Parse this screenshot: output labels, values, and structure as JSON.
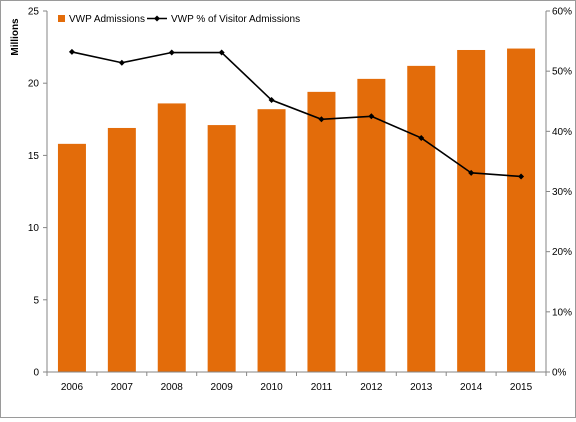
{
  "chart_data": {
    "type": "bar",
    "categories": [
      "2006",
      "2007",
      "2008",
      "2009",
      "2010",
      "2011",
      "2012",
      "2013",
      "2014",
      "2015"
    ],
    "series": [
      {
        "name": "VWP Admissions",
        "type": "bar",
        "axis": "left",
        "color": "#e36c0a",
        "values": [
          15.8,
          16.9,
          18.6,
          17.1,
          18.2,
          19.4,
          20.3,
          21.2,
          22.3,
          22.4
        ]
      },
      {
        "name": "VWP % of Visitor Admissions",
        "type": "line",
        "axis": "right",
        "color": "#000000",
        "values": [
          53.2,
          51.4,
          53.1,
          53.1,
          45.2,
          42.0,
          42.5,
          38.9,
          33.1,
          32.5
        ]
      }
    ],
    "ylabel": "Millions",
    "ylim": [
      0,
      25
    ],
    "yticks": [
      "0",
      "5",
      "10",
      "15",
      "20",
      "25"
    ],
    "y2lim": [
      0,
      60
    ],
    "y2ticks": [
      "0%",
      "10%",
      "20%",
      "30%",
      "40%",
      "50%",
      "60%"
    ],
    "legend_position": "top-left",
    "grid": false
  }
}
